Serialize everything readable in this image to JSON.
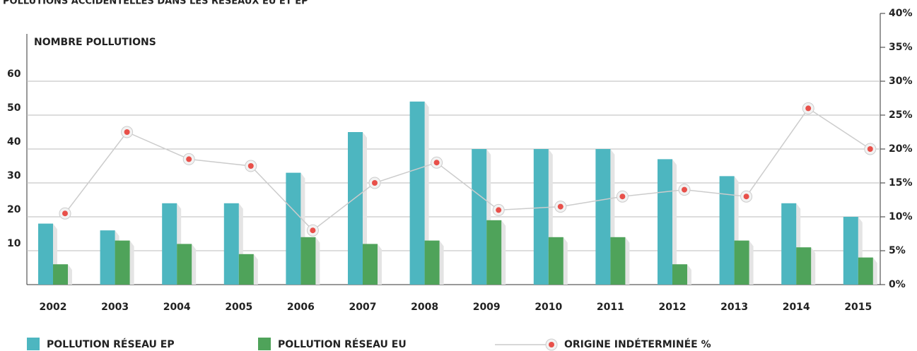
{
  "chart_data": {
    "type": "bar_line",
    "title": "POLLUTIONS ACCIDENTELLES DANS LES RÉSEAUX EU ET EP",
    "y_label": "NOMBRE POLLUTIONS",
    "categories": [
      "2002",
      "2003",
      "2004",
      "2005",
      "2006",
      "2007",
      "2008",
      "2009",
      "2010",
      "2011",
      "2012",
      "2013",
      "2014",
      "2015"
    ],
    "series": [
      {
        "name": "POLLUTION RÉSEAU EP",
        "color": "#4db6c0",
        "type": "bar",
        "values": [
          18,
          16,
          24,
          24,
          33,
          45,
          54,
          40,
          40,
          40,
          37,
          32,
          24,
          20
        ]
      },
      {
        "name": "POLLUTION RÉSEAU EU",
        "color": "#4fa35a",
        "type": "bar",
        "values": [
          6,
          13,
          12,
          9,
          14,
          12,
          13,
          19,
          14,
          14,
          6,
          13,
          11,
          8
        ]
      },
      {
        "name": "ORIGINE INDÉTERMINÉE %",
        "color": "#e8504a",
        "type": "line",
        "axis": "y2",
        "values": [
          10.5,
          22.5,
          18.5,
          17.5,
          8,
          15,
          18,
          11,
          11.5,
          13,
          14,
          13,
          26,
          20
        ]
      }
    ],
    "ylim": [
      0,
      80
    ],
    "yticks": [
      10,
      20,
      30,
      40,
      50,
      60
    ],
    "y2lim": [
      0,
      40
    ],
    "y2ticks": [
      {
        "value": 0,
        "label": "0%"
      },
      {
        "value": 5,
        "label": "5%"
      },
      {
        "value": 10,
        "label": "10%"
      },
      {
        "value": 15,
        "label": "15%"
      },
      {
        "value": 20,
        "label": "20%"
      },
      {
        "value": 25,
        "label": "25%"
      },
      {
        "value": 30,
        "label": "30%"
      },
      {
        "value": 35,
        "label": "35%"
      },
      {
        "value": 40,
        "label": "40%"
      }
    ],
    "grid": true
  }
}
